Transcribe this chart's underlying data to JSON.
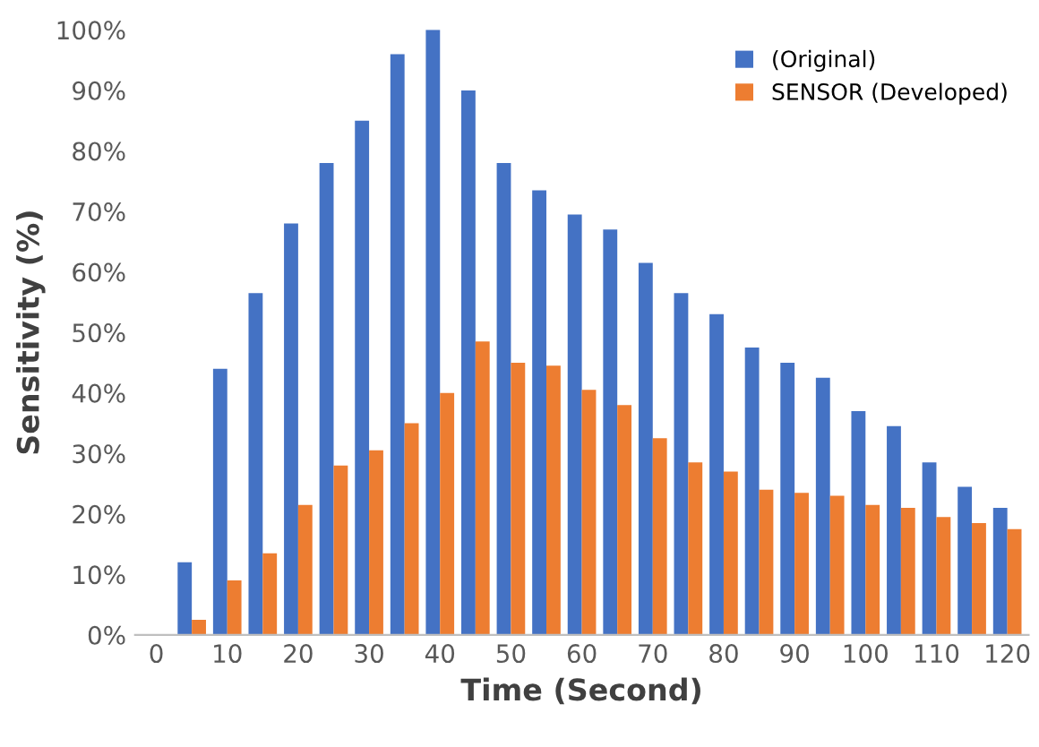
{
  "chart_data": {
    "type": "bar",
    "xlabel": "Time (Second)",
    "ylabel": "Sensitivity (%)",
    "categories": [
      "0",
      null,
      "10",
      null,
      "20",
      null,
      "30",
      null,
      "40",
      null,
      "50",
      null,
      "60",
      null,
      "70",
      null,
      "80",
      null,
      "90",
      null,
      "100",
      null,
      "110",
      null,
      "120"
    ],
    "series": [
      {
        "name": "(Original)",
        "color": "#4472c4",
        "values": [
          0,
          12,
          44,
          56.5,
          68,
          78,
          85,
          96,
          100,
          90,
          78,
          73.5,
          69.5,
          67,
          61.5,
          56.5,
          53,
          47.5,
          45,
          42.5,
          37,
          34.5,
          28.5,
          24.5,
          21
        ]
      },
      {
        "name": "SENSOR (Developed)",
        "color": "#ed7d31",
        "values": [
          0,
          2.5,
          9,
          13.5,
          21.5,
          28,
          30.5,
          35,
          40,
          48.5,
          45,
          44.5,
          40.5,
          38,
          32.5,
          28.5,
          27,
          24,
          23.5,
          23,
          21.5,
          21,
          19.5,
          18.5,
          17.5
        ]
      }
    ],
    "ylim": [
      0,
      100
    ],
    "yticks": [
      {
        "value": 0,
        "label": "0%"
      },
      {
        "value": 10,
        "label": "10%"
      },
      {
        "value": 20,
        "label": "20%"
      },
      {
        "value": 30,
        "label": "30%"
      },
      {
        "value": 40,
        "label": "40%"
      },
      {
        "value": 50,
        "label": "50%"
      },
      {
        "value": 60,
        "label": "60%"
      },
      {
        "value": 70,
        "label": "70%"
      },
      {
        "value": 80,
        "label": "80%"
      },
      {
        "value": 90,
        "label": "90%"
      },
      {
        "value": 100,
        "label": "100%"
      }
    ],
    "legend": "top right"
  }
}
